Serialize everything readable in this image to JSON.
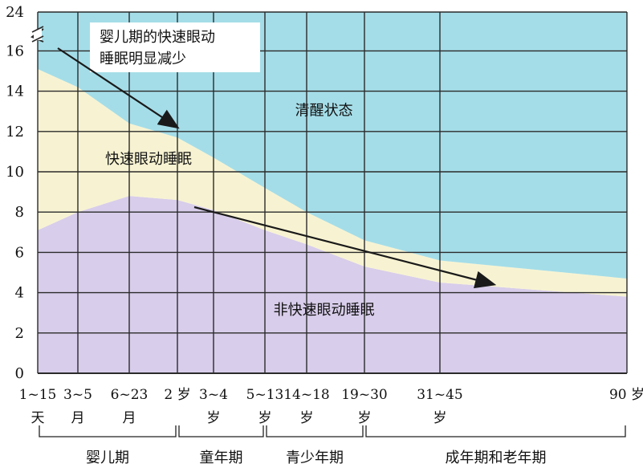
{
  "chart_data": {
    "type": "area",
    "title": "",
    "xlabel": "",
    "ylabel": "",
    "ylim": [
      0,
      24
    ],
    "y_ticks": [
      0,
      2,
      4,
      6,
      8,
      10,
      12,
      14,
      16,
      24
    ],
    "y_axis_break": true,
    "grid": true,
    "x_ticks": [
      {
        "line1": "1~15",
        "line2": "天"
      },
      {
        "line1": "3~5",
        "line2": "月"
      },
      {
        "line1": "6~23",
        "line2": "月"
      },
      {
        "line1": "2 岁",
        "line2": ""
      },
      {
        "line1": "3~4",
        "line2": "岁"
      },
      {
        "line1": "5~13",
        "line2": "岁"
      },
      {
        "line1": "14~18",
        "line2": "岁"
      },
      {
        "line1": "19~30",
        "line2": "岁"
      },
      {
        "line1": "31~45",
        "line2": "岁"
      },
      {
        "line1": "90 岁",
        "line2": ""
      }
    ],
    "age_groups": [
      {
        "label": "婴儿期",
        "from": 0,
        "to": 3
      },
      {
        "label": "童年期",
        "from": 3,
        "to": 5
      },
      {
        "label": "青少年期",
        "from": 5,
        "to": 7
      },
      {
        "label": "成年期和老年期",
        "from": 7,
        "to": 9
      }
    ],
    "series": [
      {
        "name": "非快速眼动睡眠",
        "color": "#d8cdea",
        "values": [
          7.1,
          8.0,
          8.8,
          8.6,
          8.1,
          7.1,
          6.4,
          5.3,
          4.5,
          3.8
        ]
      },
      {
        "name": "快速眼动睡眠",
        "color": "#f7f3d2",
        "values": [
          8.0,
          6.2,
          3.6,
          3.1,
          2.6,
          2.1,
          1.6,
          1.3,
          1.1,
          0.9
        ]
      },
      {
        "name": "清醒状态",
        "color": "#a4dde8",
        "values": [
          8.9,
          9.8,
          11.6,
          12.3,
          13.3,
          14.8,
          16.0,
          17.4,
          18.4,
          19.3
        ]
      }
    ],
    "region_labels": [
      {
        "text": "清醒状态",
        "x": 6.3,
        "y": 12.8
      },
      {
        "text": "快速眼动睡眠",
        "x": 2.4,
        "y": 10.4
      },
      {
        "text": "非快速眼动睡眠",
        "x": 6.3,
        "y": 2.9
      }
    ],
    "annotation": {
      "lines": [
        "婴儿期的快速眼动",
        "睡眠明显减少"
      ]
    }
  },
  "colors": {
    "grid": "#2b2b2b",
    "arrow": "#1a1a1a"
  }
}
